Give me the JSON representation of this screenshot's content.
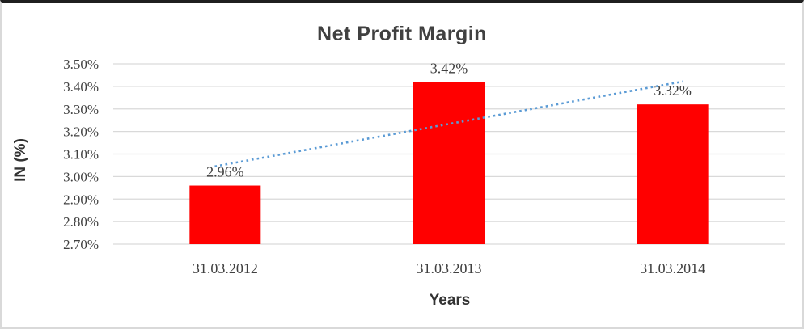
{
  "chart_data": {
    "type": "bar",
    "title": "Net Profit Margin",
    "categories": [
      "31.03.2012",
      "31.03.2013",
      "31.03.2014"
    ],
    "values": [
      2.96,
      3.42,
      3.32
    ],
    "data_labels": [
      "2.96%",
      "3.42%",
      "3.32%"
    ],
    "xlabel": "Years",
    "ylabel": "IN (%)",
    "ylim": [
      2.7,
      3.5
    ],
    "ytick_step": 0.1,
    "ytick_labels": [
      "2.70%",
      "2.80%",
      "2.90%",
      "3.00%",
      "3.10%",
      "3.20%",
      "3.30%",
      "3.40%",
      "3.50%"
    ],
    "grid": true,
    "legend": "none",
    "bar_color": "#ff0000",
    "gridline_color": "#d9d9d9",
    "text_color": "#404040",
    "trendline": {
      "type": "linear",
      "style": "dotted",
      "color": "#5b9bd5"
    }
  }
}
